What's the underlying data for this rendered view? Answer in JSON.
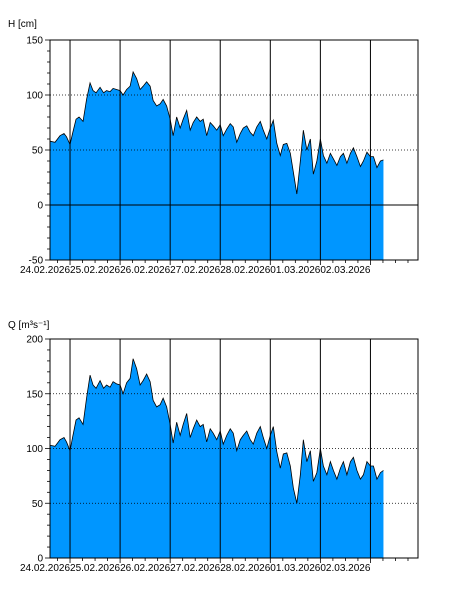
{
  "chart_data": [
    {
      "type": "area",
      "title": "",
      "ylabel": "H [cm]",
      "ylim": [
        -50,
        150
      ],
      "yticks": [
        -50,
        0,
        50,
        100,
        150
      ],
      "xlim": [
        23.6,
        30.95
      ],
      "day_dates": [
        24,
        25,
        26,
        27,
        28,
        29,
        30
      ],
      "xtick_labels": [
        "24.02.2026",
        "25.02.2026",
        "26.02.2026",
        "27.02.2026",
        "28.02.2026",
        "01.03.2026",
        "02.03.2026"
      ],
      "zero_line": 0,
      "grid": "dotted horizontal, solid vertical at day boundaries",
      "fill_color": "#0096ff",
      "series": [
        {
          "x": [
            23.6,
            23.7,
            23.8,
            23.88,
            23.93,
            24.0,
            24.05,
            24.12,
            24.18,
            24.26,
            24.33,
            24.4,
            24.46,
            24.52,
            24.6,
            24.67,
            24.73,
            24.8,
            24.86,
            24.93,
            25.0,
            25.06,
            25.13,
            25.2,
            25.26,
            25.33,
            25.4,
            25.46,
            25.53,
            25.6,
            25.66,
            25.73,
            25.8,
            25.86,
            25.93,
            26.0,
            26.06,
            26.13,
            26.2,
            26.26,
            26.33,
            26.4,
            26.46,
            26.53,
            26.6,
            26.66,
            26.73,
            26.8,
            26.86,
            26.93,
            27.0,
            27.06,
            27.13,
            27.2,
            27.26,
            27.33,
            27.4,
            27.46,
            27.53,
            27.6,
            27.66,
            27.73,
            27.8,
            27.86,
            27.93,
            28.0,
            28.06,
            28.13,
            28.2,
            28.26,
            28.33,
            28.4,
            28.46,
            28.53,
            28.6,
            28.66,
            28.73,
            28.8,
            28.86,
            28.93,
            29.0,
            29.06,
            29.13,
            29.2,
            29.26,
            29.33,
            29.4,
            29.46,
            29.53,
            29.6,
            29.66,
            29.73,
            29.8,
            29.86,
            29.93,
            30.0,
            30.06,
            30.13,
            30.2,
            30.26
          ],
          "y": [
            58,
            57,
            63,
            65,
            62,
            55,
            65,
            78,
            80,
            76,
            96,
            111,
            104,
            102,
            107,
            102,
            104,
            103,
            106,
            105,
            104,
            100,
            105,
            108,
            121,
            115,
            105,
            108,
            112,
            108,
            95,
            90,
            92,
            96,
            90,
            78,
            63,
            80,
            70,
            78,
            86,
            68,
            75,
            80,
            76,
            78,
            63,
            75,
            72,
            68,
            73,
            63,
            69,
            74,
            71,
            57,
            65,
            70,
            72,
            66,
            63,
            71,
            76,
            68,
            60,
            70,
            77,
            56,
            45,
            55,
            56,
            47,
            30,
            10,
            40,
            68,
            50,
            60,
            28,
            40,
            60,
            45,
            38,
            47,
            42,
            36,
            44,
            47,
            38,
            47,
            52,
            44,
            35,
            40,
            48,
            44,
            44,
            34,
            40,
            41
          ]
        }
      ]
    },
    {
      "type": "area",
      "title": "",
      "ylabel": "Q [m³s⁻¹]",
      "ylim": [
        0,
        200
      ],
      "yticks": [
        0,
        50,
        100,
        150,
        200
      ],
      "xlim": [
        23.6,
        30.95
      ],
      "day_dates": [
        24,
        25,
        26,
        27,
        28,
        29,
        30
      ],
      "xtick_labels": [
        "24.02.2026",
        "25.02.2026",
        "26.02.2026",
        "27.02.2026",
        "28.02.2026",
        "01.03.2026",
        "02.03.2026"
      ],
      "grid": "dotted horizontal, solid vertical at day boundaries",
      "fill_color": "#0096ff",
      "series": [
        {
          "x": [
            23.6,
            23.7,
            23.8,
            23.88,
            23.93,
            24.0,
            24.05,
            24.12,
            24.18,
            24.26,
            24.33,
            24.4,
            24.46,
            24.52,
            24.6,
            24.67,
            24.73,
            24.8,
            24.86,
            24.93,
            25.0,
            25.06,
            25.13,
            25.2,
            25.26,
            25.33,
            25.4,
            25.46,
            25.53,
            25.6,
            25.66,
            25.73,
            25.8,
            25.86,
            25.93,
            26.0,
            26.06,
            26.13,
            26.2,
            26.26,
            26.33,
            26.4,
            26.46,
            26.53,
            26.6,
            26.66,
            26.73,
            26.8,
            26.86,
            26.93,
            27.0,
            27.06,
            27.13,
            27.2,
            27.26,
            27.33,
            27.4,
            27.46,
            27.53,
            27.6,
            27.66,
            27.73,
            27.8,
            27.86,
            27.93,
            28.0,
            28.06,
            28.13,
            28.2,
            28.26,
            28.33,
            28.4,
            28.46,
            28.53,
            28.6,
            28.66,
            28.73,
            28.8,
            28.86,
            28.93,
            29.0,
            29.06,
            29.13,
            29.2,
            29.26,
            29.33,
            29.4,
            29.46,
            29.53,
            29.6,
            29.66,
            29.73,
            29.8,
            29.86,
            29.93,
            30.0,
            30.06,
            30.13,
            30.2,
            30.26
          ],
          "y": [
            103,
            102,
            108,
            110,
            106,
            98,
            110,
            126,
            128,
            122,
            146,
            167,
            158,
            155,
            162,
            155,
            158,
            156,
            161,
            159,
            158,
            150,
            160,
            164,
            182,
            173,
            158,
            162,
            168,
            161,
            144,
            138,
            140,
            146,
            138,
            122,
            105,
            124,
            112,
            122,
            132,
            110,
            118,
            126,
            120,
            122,
            106,
            118,
            114,
            108,
            116,
            104,
            112,
            118,
            114,
            98,
            108,
            112,
            116,
            108,
            104,
            114,
            120,
            110,
            100,
            112,
            120,
            97,
            82,
            95,
            96,
            84,
            64,
            50,
            76,
            108,
            88,
            98,
            70,
            78,
            100,
            84,
            76,
            88,
            80,
            72,
            82,
            88,
            76,
            88,
            92,
            80,
            72,
            76,
            88,
            84,
            84,
            72,
            78,
            80
          ]
        }
      ]
    }
  ]
}
